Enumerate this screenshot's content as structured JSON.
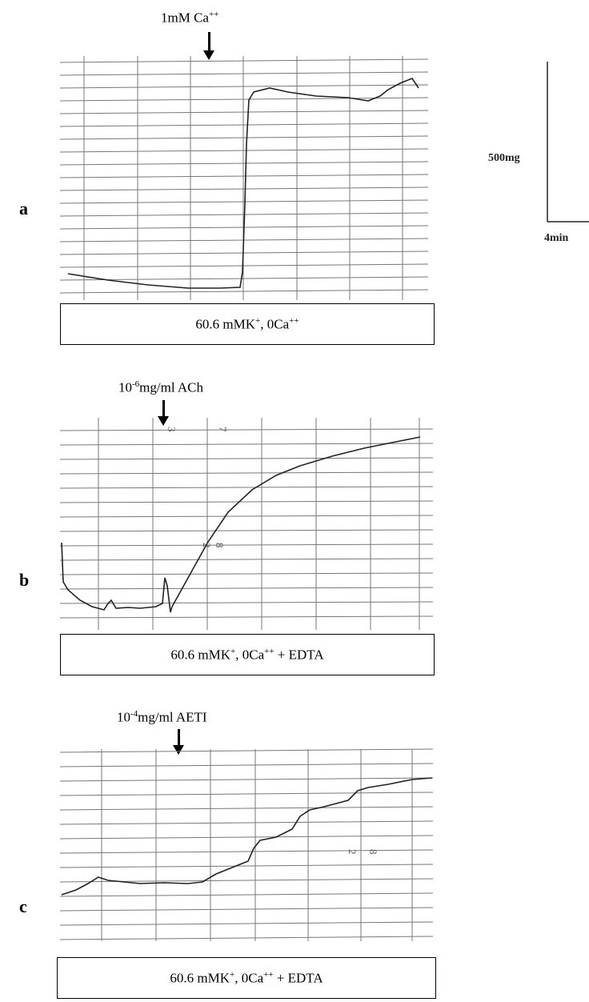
{
  "panels": [
    {
      "letter": "a",
      "stimulus": {
        "base": "1mM Ca",
        "sup": "++"
      },
      "condition": {
        "text": "60.6 mMK",
        "sup1": "+",
        "mid": ", 0Ca",
        "sup2": "++",
        "tail": ""
      }
    },
    {
      "letter": "b",
      "stimulus": {
        "pre": "10",
        "sup": "-6",
        "base": "mg/ml ACh"
      },
      "chart_numbers": [
        "3",
        "7",
        "2",
        "8"
      ],
      "condition": {
        "text": "60.6 mMK",
        "sup1": "+",
        "mid": ", 0Ca",
        "sup2": "++",
        "tail": " + EDTA"
      }
    },
    {
      "letter": "c",
      "stimulus": {
        "pre": "10",
        "sup": "-4",
        "base": "mg/ml AETI"
      },
      "chart_numbers": [
        "2",
        "8"
      ],
      "condition": {
        "text": "60.6 mMK",
        "sup1": "+",
        "mid": ", 0Ca",
        "sup2": "++",
        "tail": " + EDTA"
      }
    }
  ],
  "scale_bar": {
    "vertical_label": "500mg",
    "horizontal_label": "4min"
  }
}
